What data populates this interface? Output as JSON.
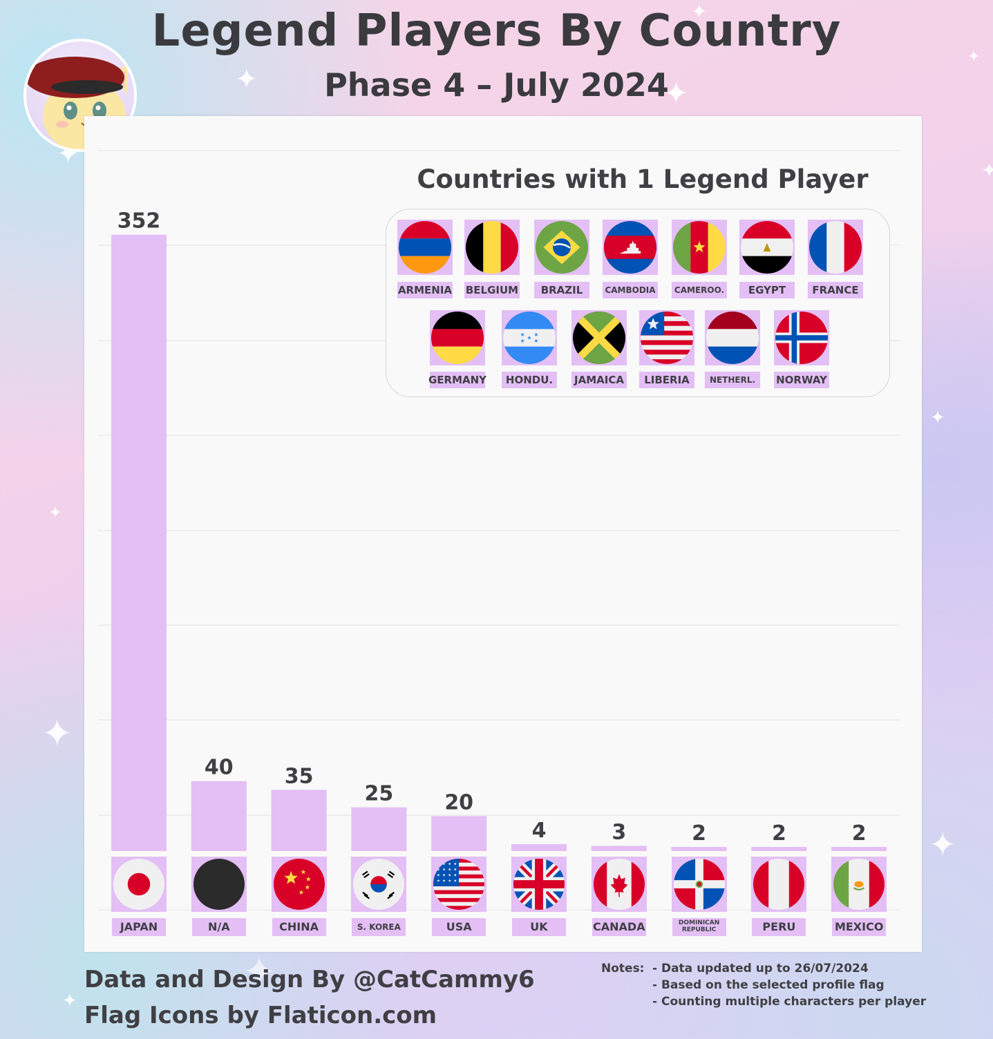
{
  "title": "Legend Players By Country",
  "subtitle": "Phase 4 – July 2024",
  "credits": [
    "Data and Design By @CatCammy6",
    "Flag Icons by Flaticon.com"
  ],
  "notes": {
    "label": "Notes:",
    "items": [
      "- Data updated up to 26/07/2024",
      "- Based on the selected profile flag",
      "- Counting multiple characters per player"
    ]
  },
  "chart_data": {
    "type": "bar",
    "title": "Legend Players By Country",
    "subtitle": "Phase 4 – July 2024",
    "categories": [
      "JAPAN",
      "N/A",
      "CHINA",
      "S. KOREA",
      "USA",
      "UK",
      "CANADA",
      "DOMINICAN REPUBLIC",
      "PERU",
      "MEXICO"
    ],
    "values": [
      352,
      40,
      35,
      25,
      20,
      4,
      3,
      2,
      2,
      2
    ],
    "ylim": [
      0,
      400
    ],
    "grid": true,
    "bar_color": "#e3bff5",
    "inset": {
      "title": "Countries with 1 Legend Player",
      "value": 1,
      "countries": [
        "ARMENIA",
        "BELGIUM",
        "BRAZIL",
        "CAMBODIA",
        "CAMEROO.",
        "EGYPT",
        "FRANCE",
        "GERMANY",
        "HONDU.",
        "JAMAICA",
        "LIBERIA",
        "NETHERL.",
        "NORWAY"
      ]
    }
  },
  "flag_icons": [
    "japan-flag",
    "na-black-circle",
    "china-flag",
    "south-korea-flag",
    "usa-flag",
    "uk-flag",
    "canada-flag",
    "dominican-republic-flag",
    "peru-flag",
    "mexico-flag"
  ],
  "inset_flag_icons": [
    "armenia-flag",
    "belgium-flag",
    "brazil-flag",
    "cambodia-flag",
    "cameroon-flag",
    "egypt-flag",
    "france-flag",
    "germany-flag",
    "honduras-flag",
    "jamaica-flag",
    "liberia-flag",
    "netherlands-flag",
    "norway-flag"
  ],
  "colors": {
    "bar": "#e3bff5",
    "text": "#3f3f44",
    "panel": "#f9f9f9",
    "grid": "#e4e4e4"
  }
}
